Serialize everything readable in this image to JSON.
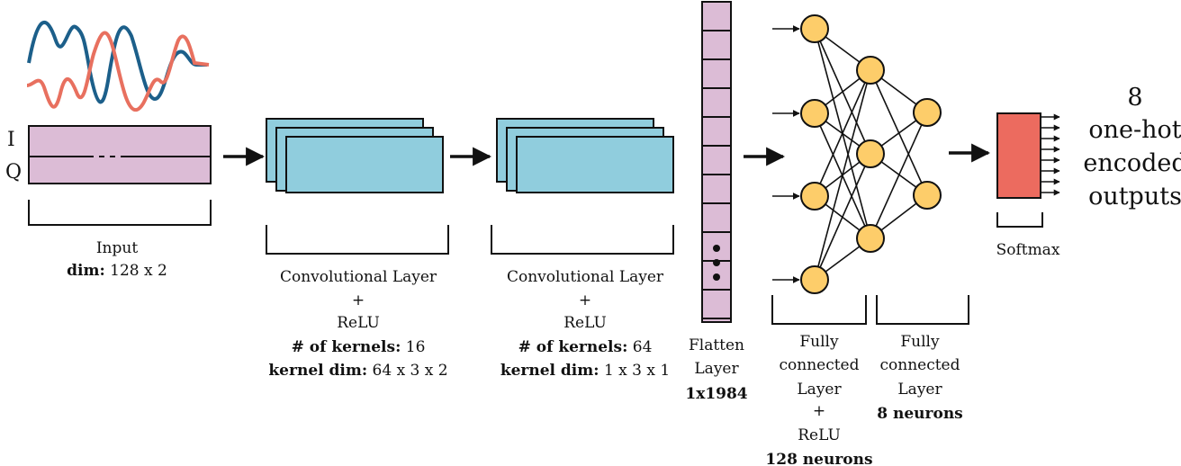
{
  "colors": {
    "input_fill": "#dcbcd6",
    "conv_fill": "#90cddd",
    "node_fill": "#fdcd6a",
    "softmax_fill": "#ec6b5f",
    "wave_i": "#1c5f8a",
    "wave_q": "#e8705f",
    "stroke": "#111111"
  },
  "input": {
    "i_label": "I",
    "q_label": "Q",
    "title": "Input",
    "dim_key": "dim:",
    "dim_val": "128 x 2"
  },
  "conv1": {
    "title": "Convolutional Layer",
    "plus": "+",
    "activation": "ReLU",
    "kernels_key": "# of kernels:",
    "kernels_val": "16",
    "kdim_key": "kernel dim:",
    "kdim_val": "64 x 3 x 2"
  },
  "conv2": {
    "title": "Convolutional Layer",
    "plus": "+",
    "activation": "ReLU",
    "kernels_key": "# of kernels:",
    "kernels_val": "64",
    "kdim_key": "kernel dim:",
    "kdim_val": "1 x 3 x 1"
  },
  "flatten": {
    "line1": "Flatten",
    "line2": "Layer",
    "dim": "1x1984"
  },
  "fc1": {
    "line1": "Fully",
    "line2": "connected",
    "line3": "Layer",
    "plus": "+",
    "activation": "ReLU",
    "neurons": "128 neurons"
  },
  "fc2": {
    "line1": "Fully",
    "line2": "connected",
    "line3": "Layer",
    "neurons": "8 neurons"
  },
  "softmax": {
    "label": "Softmax"
  },
  "outputs": {
    "line1": "8",
    "line2": "one-hot",
    "line3": "encoded",
    "line4": "outputs"
  }
}
